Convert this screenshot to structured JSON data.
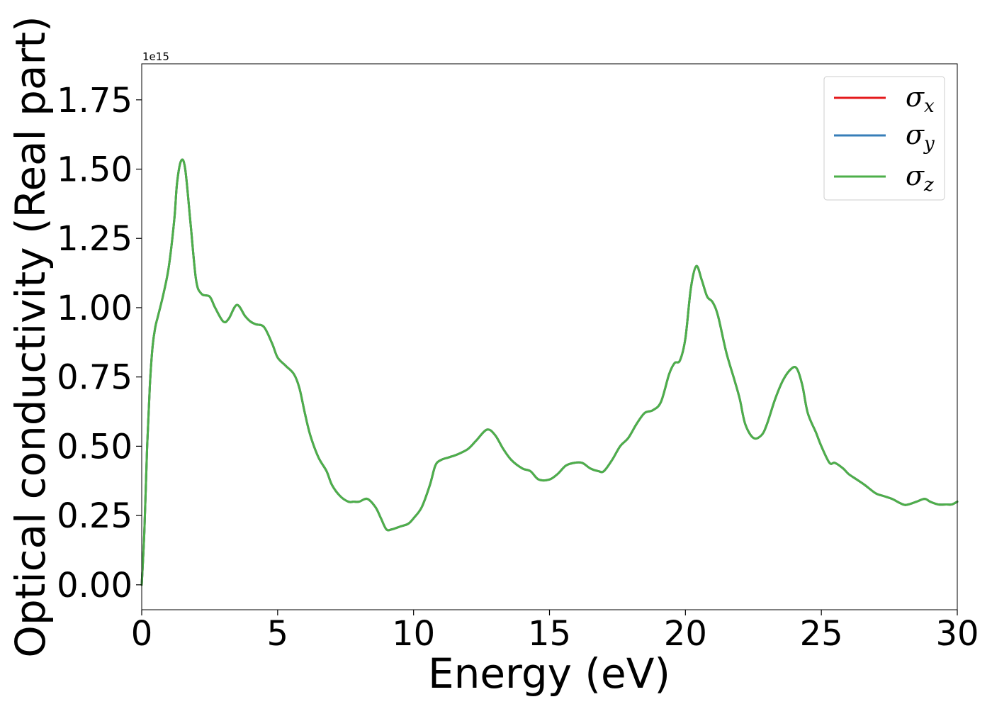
{
  "chart_data": {
    "type": "line",
    "title": "",
    "xlabel": "Energy (eV)",
    "ylabel": "Optical conductivity (Real part)",
    "y_offset_label": "1e15",
    "y_scale_factor": 1000000000000000.0,
    "xlim": [
      0,
      30
    ],
    "ylim": [
      -0.09,
      1.88
    ],
    "xticks": [
      0,
      5,
      10,
      15,
      20,
      25,
      30
    ],
    "xtick_labels": [
      "0",
      "5",
      "10",
      "15",
      "20",
      "25",
      "30"
    ],
    "yticks": [
      0.0,
      0.25,
      0.5,
      0.75,
      1.0,
      1.25,
      1.5,
      1.75
    ],
    "ytick_labels": [
      "0.00",
      "0.25",
      "0.50",
      "0.75",
      "1.00",
      "1.25",
      "1.50",
      "1.75"
    ],
    "grid": false,
    "legend_position": "top-right",
    "x": [
      0,
      0.1,
      0.2,
      0.3,
      0.4,
      0.5,
      0.6,
      0.8,
      1.0,
      1.2,
      1.3,
      1.45,
      1.6,
      1.8,
      2.0,
      2.2,
      2.5,
      2.7,
      3.0,
      3.2,
      3.5,
      3.8,
      4.0,
      4.2,
      4.5,
      4.8,
      5.0,
      5.3,
      5.6,
      5.8,
      6.0,
      6.2,
      6.5,
      6.8,
      7.0,
      7.3,
      7.6,
      7.8,
      8.0,
      8.3,
      8.6,
      8.8,
      9.0,
      9.2,
      9.5,
      9.8,
      10.0,
      10.3,
      10.6,
      10.8,
      11.0,
      11.3,
      11.6,
      12.0,
      12.3,
      12.7,
      13.0,
      13.3,
      13.6,
      14.0,
      14.3,
      14.6,
      15.0,
      15.3,
      15.6,
      15.9,
      16.2,
      16.5,
      16.8,
      17.0,
      17.3,
      17.6,
      17.9,
      18.2,
      18.5,
      18.8,
      19.1,
      19.4,
      19.6,
      19.8,
      20.0,
      20.2,
      20.4,
      20.6,
      20.8,
      21.0,
      21.2,
      21.5,
      21.8,
      22.0,
      22.2,
      22.5,
      22.8,
      23.0,
      23.3,
      23.6,
      23.9,
      24.1,
      24.3,
      24.5,
      24.8,
      25.0,
      25.3,
      25.5,
      25.8,
      26.0,
      26.3,
      26.6,
      27.0,
      27.3,
      27.6,
      28.0,
      28.2,
      28.5,
      28.8,
      29.0,
      29.3,
      29.6,
      29.8,
      30.0
    ],
    "series": [
      {
        "name": "σx",
        "label_main": "σ",
        "label_sub": "x",
        "color": "#e41a1c",
        "values": [
          0.0,
          0.2,
          0.5,
          0.72,
          0.86,
          0.93,
          0.97,
          1.05,
          1.15,
          1.32,
          1.45,
          1.53,
          1.5,
          1.3,
          1.1,
          1.05,
          1.04,
          1.0,
          0.95,
          0.96,
          1.01,
          0.97,
          0.95,
          0.94,
          0.93,
          0.87,
          0.82,
          0.79,
          0.76,
          0.71,
          0.62,
          0.54,
          0.46,
          0.41,
          0.36,
          0.32,
          0.3,
          0.3,
          0.3,
          0.31,
          0.28,
          0.24,
          0.2,
          0.2,
          0.21,
          0.22,
          0.24,
          0.28,
          0.36,
          0.43,
          0.45,
          0.46,
          0.47,
          0.49,
          0.52,
          0.56,
          0.54,
          0.49,
          0.45,
          0.42,
          0.41,
          0.38,
          0.38,
          0.4,
          0.43,
          0.44,
          0.44,
          0.42,
          0.41,
          0.41,
          0.45,
          0.5,
          0.53,
          0.58,
          0.62,
          0.63,
          0.66,
          0.76,
          0.8,
          0.81,
          0.89,
          1.07,
          1.15,
          1.1,
          1.04,
          1.02,
          0.97,
          0.84,
          0.74,
          0.67,
          0.58,
          0.53,
          0.54,
          0.58,
          0.67,
          0.74,
          0.78,
          0.78,
          0.72,
          0.62,
          0.55,
          0.5,
          0.44,
          0.44,
          0.42,
          0.4,
          0.38,
          0.36,
          0.33,
          0.32,
          0.31,
          0.29,
          0.29,
          0.3,
          0.31,
          0.3,
          0.29,
          0.29,
          0.29,
          0.3
        ]
      },
      {
        "name": "σy",
        "label_main": "σ",
        "label_sub": "y",
        "color": "#377eb8",
        "values": [
          0.0,
          0.2,
          0.5,
          0.72,
          0.86,
          0.93,
          0.97,
          1.05,
          1.15,
          1.32,
          1.45,
          1.53,
          1.5,
          1.3,
          1.1,
          1.05,
          1.04,
          1.0,
          0.95,
          0.96,
          1.01,
          0.97,
          0.95,
          0.94,
          0.93,
          0.87,
          0.82,
          0.79,
          0.76,
          0.71,
          0.62,
          0.54,
          0.46,
          0.41,
          0.36,
          0.32,
          0.3,
          0.3,
          0.3,
          0.31,
          0.28,
          0.24,
          0.2,
          0.2,
          0.21,
          0.22,
          0.24,
          0.28,
          0.36,
          0.43,
          0.45,
          0.46,
          0.47,
          0.49,
          0.52,
          0.56,
          0.54,
          0.49,
          0.45,
          0.42,
          0.41,
          0.38,
          0.38,
          0.4,
          0.43,
          0.44,
          0.44,
          0.42,
          0.41,
          0.41,
          0.45,
          0.5,
          0.53,
          0.58,
          0.62,
          0.63,
          0.66,
          0.76,
          0.8,
          0.81,
          0.89,
          1.07,
          1.15,
          1.1,
          1.04,
          1.02,
          0.97,
          0.84,
          0.74,
          0.67,
          0.58,
          0.53,
          0.54,
          0.58,
          0.67,
          0.74,
          0.78,
          0.78,
          0.72,
          0.62,
          0.55,
          0.5,
          0.44,
          0.44,
          0.42,
          0.4,
          0.38,
          0.36,
          0.33,
          0.32,
          0.31,
          0.29,
          0.29,
          0.3,
          0.31,
          0.3,
          0.29,
          0.29,
          0.29,
          0.3
        ]
      },
      {
        "name": "σz",
        "label_main": "σ",
        "label_sub": "z",
        "color": "#4daf4a",
        "values": [
          0.0,
          0.2,
          0.5,
          0.72,
          0.86,
          0.93,
          0.97,
          1.05,
          1.15,
          1.32,
          1.45,
          1.53,
          1.5,
          1.3,
          1.1,
          1.05,
          1.04,
          1.0,
          0.95,
          0.96,
          1.01,
          0.97,
          0.95,
          0.94,
          0.93,
          0.87,
          0.82,
          0.79,
          0.76,
          0.71,
          0.62,
          0.54,
          0.46,
          0.41,
          0.36,
          0.32,
          0.3,
          0.3,
          0.3,
          0.31,
          0.28,
          0.24,
          0.2,
          0.2,
          0.21,
          0.22,
          0.24,
          0.28,
          0.36,
          0.43,
          0.45,
          0.46,
          0.47,
          0.49,
          0.52,
          0.56,
          0.54,
          0.49,
          0.45,
          0.42,
          0.41,
          0.38,
          0.38,
          0.4,
          0.43,
          0.44,
          0.44,
          0.42,
          0.41,
          0.41,
          0.45,
          0.5,
          0.53,
          0.58,
          0.62,
          0.63,
          0.66,
          0.76,
          0.8,
          0.81,
          0.89,
          1.07,
          1.15,
          1.1,
          1.04,
          1.02,
          0.97,
          0.84,
          0.74,
          0.67,
          0.58,
          0.53,
          0.54,
          0.58,
          0.67,
          0.74,
          0.78,
          0.78,
          0.72,
          0.62,
          0.55,
          0.5,
          0.44,
          0.44,
          0.42,
          0.4,
          0.38,
          0.36,
          0.33,
          0.32,
          0.31,
          0.29,
          0.29,
          0.3,
          0.31,
          0.3,
          0.29,
          0.29,
          0.29,
          0.3
        ]
      }
    ]
  }
}
